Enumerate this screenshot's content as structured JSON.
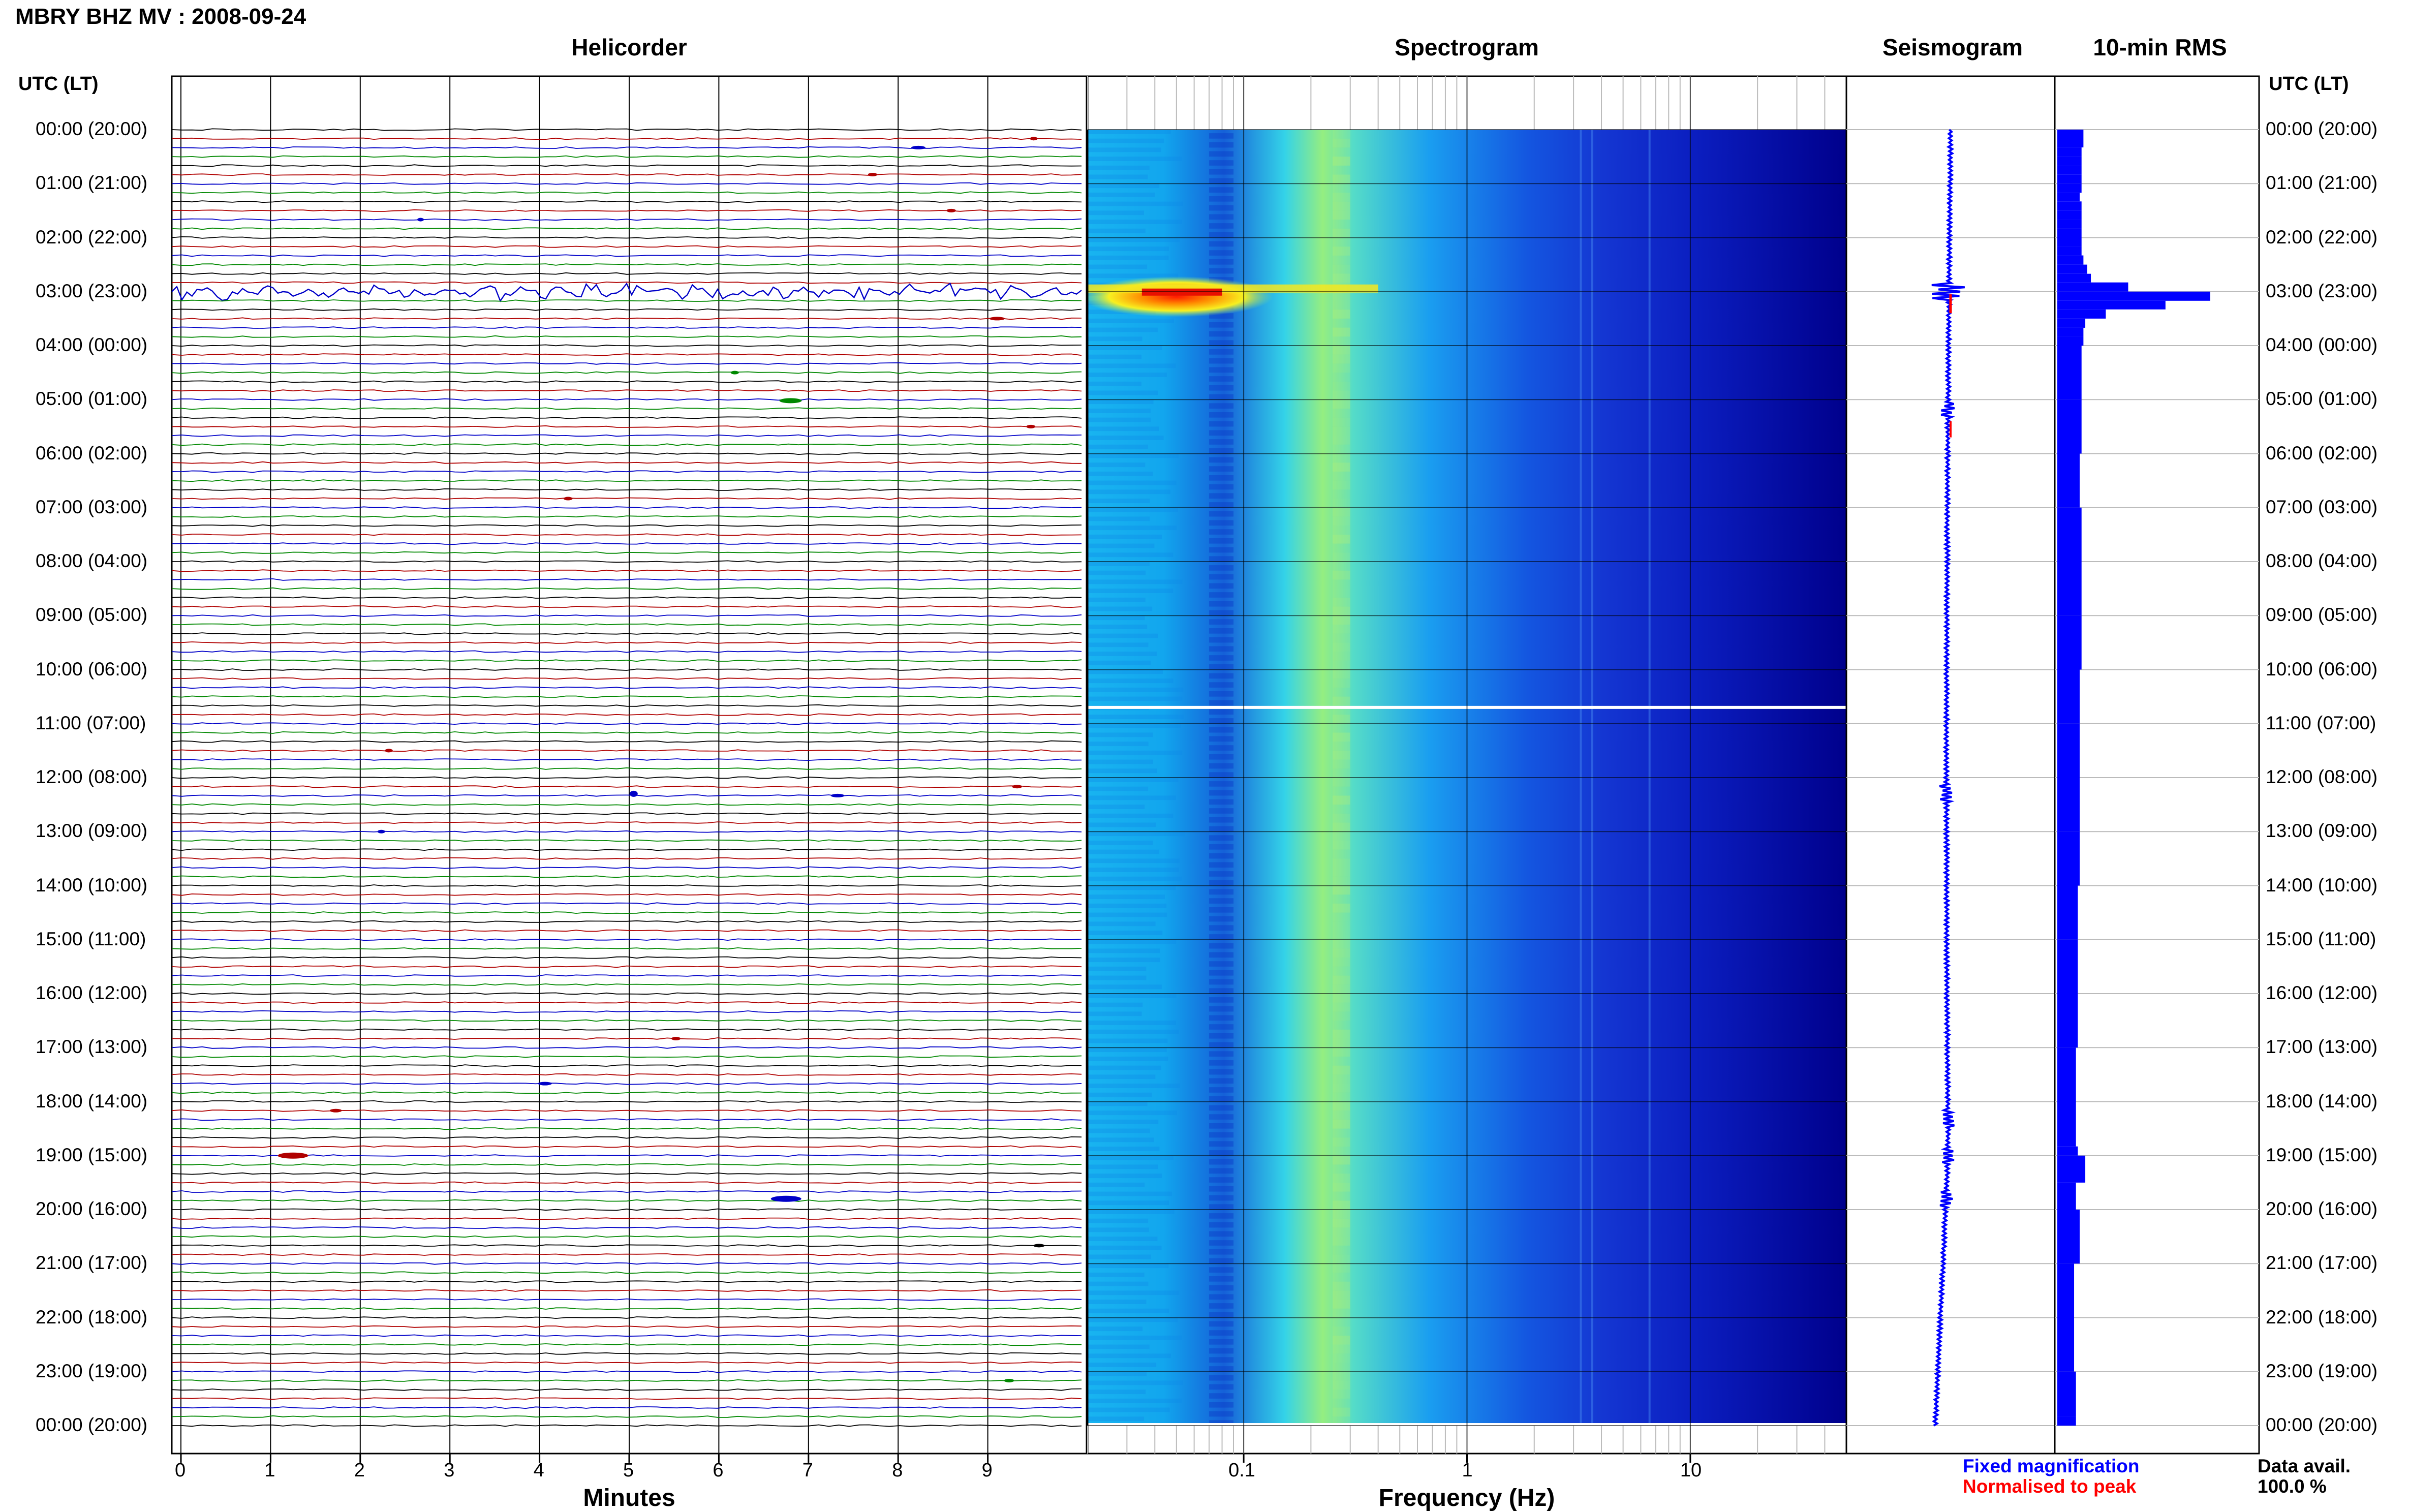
{
  "title": "MBRY BHZ MV : 2008-09-24",
  "panels": {
    "helicorder": "Helicorder",
    "spectrogram": "Spectrogram",
    "seismogram": "Seismogram",
    "rms": "10-min RMS"
  },
  "axis_headers": {
    "left": "UTC (LT)",
    "right": "UTC (LT)"
  },
  "time_labels": [
    "00:00 (20:00)",
    "01:00 (21:00)",
    "02:00 (22:00)",
    "03:00 (23:00)",
    "04:00 (00:00)",
    "05:00 (01:00)",
    "06:00 (02:00)",
    "07:00 (03:00)",
    "08:00 (04:00)",
    "09:00 (05:00)",
    "10:00 (06:00)",
    "11:00 (07:00)",
    "12:00 (08:00)",
    "13:00 (09:00)",
    "14:00 (10:00)",
    "15:00 (11:00)",
    "16:00 (12:00)",
    "17:00 (13:00)",
    "18:00 (14:00)",
    "19:00 (15:00)",
    "20:00 (16:00)",
    "21:00 (17:00)",
    "22:00 (18:00)",
    "23:00 (19:00)",
    "00:00 (20:00)"
  ],
  "legend": {
    "fixed": "Fixed magnification",
    "normalised": "Normalised to peak",
    "data_avail_label": "Data avail.",
    "data_avail_value": "100.0 %"
  },
  "colors": {
    "helicorder_traces": [
      "#000000",
      "#b00000",
      "#0000c8",
      "#008800"
    ],
    "fixed": "#0000ff",
    "normalised": "#ff0000",
    "rms": "#0000ff"
  },
  "chart_data": [
    {
      "type": "line",
      "panel": "helicorder",
      "xlabel": "Minutes",
      "x_ticks": [
        "0",
        "1",
        "2",
        "3",
        "4",
        "5",
        "6",
        "7",
        "8",
        "9"
      ],
      "xlim": [
        0,
        10
      ],
      "rows_per_hour": 6,
      "trace_colors_cycle": [
        "black",
        "red",
        "blue",
        "green"
      ],
      "large_signal_hours": [
        3.0,
        3.1,
        3.2
      ]
    },
    {
      "type": "heatmap",
      "panel": "spectrogram",
      "xlabel": "Frequency (Hz)",
      "x_scale": "log",
      "x_ticks": [
        "0.1",
        "1",
        "10"
      ],
      "xlim": [
        0.02,
        50
      ],
      "peak_event_hour": 3.0,
      "ridge_frequency_hz": 0.28,
      "data_gap_hour": 10.7
    },
    {
      "type": "line",
      "panel": "seismogram",
      "event_hours": [
        3.0,
        5.2,
        12.3,
        18.3,
        19.0,
        19.8
      ]
    },
    {
      "type": "bar",
      "panel": "rms",
      "orientation": "horizontal",
      "hours": [
        0.0,
        0.17,
        0.33,
        0.5,
        0.67,
        0.83,
        1.0,
        1.17,
        1.33,
        1.5,
        1.67,
        1.83,
        2.0,
        2.17,
        2.33,
        2.5,
        2.67,
        2.83,
        3.0,
        3.17,
        3.33,
        3.5,
        3.67,
        3.83,
        4.0,
        5.0,
        6.0,
        7.0,
        8.0,
        9.0,
        10.0,
        11.0,
        12.0,
        13.0,
        14.0,
        15.0,
        16.0,
        17.0,
        18.0,
        18.83,
        19.0,
        19.5,
        20.0,
        21.0,
        22.0,
        23.0,
        23.83
      ],
      "values": [
        0.14,
        0.14,
        0.13,
        0.13,
        0.13,
        0.13,
        0.13,
        0.12,
        0.13,
        0.13,
        0.13,
        0.13,
        0.13,
        0.13,
        0.14,
        0.16,
        0.18,
        0.38,
        0.82,
        0.58,
        0.26,
        0.15,
        0.14,
        0.14,
        0.13,
        0.13,
        0.12,
        0.13,
        0.13,
        0.13,
        0.12,
        0.12,
        0.12,
        0.12,
        0.11,
        0.11,
        0.11,
        0.1,
        0.1,
        0.11,
        0.15,
        0.1,
        0.12,
        0.09,
        0.09,
        0.1,
        0.1
      ],
      "xlim": [
        0,
        1
      ]
    }
  ]
}
